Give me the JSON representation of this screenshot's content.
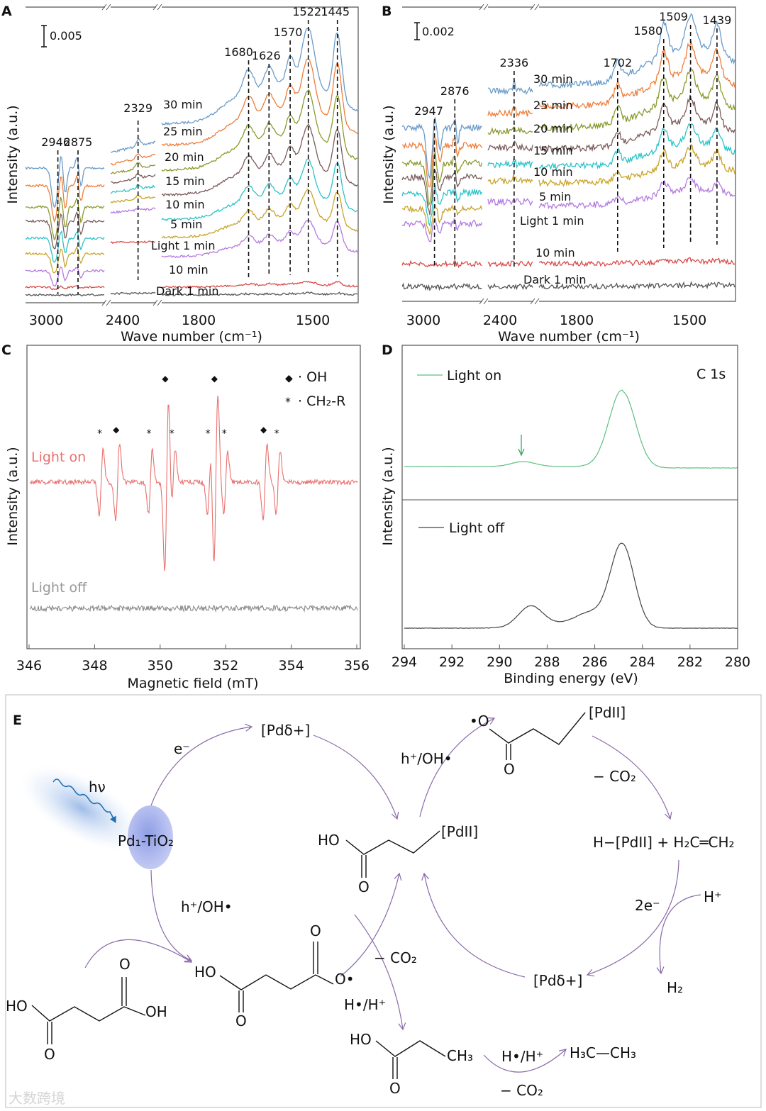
{
  "panels": {
    "A": "A",
    "B": "B",
    "C": "C",
    "D": "D",
    "E": "E"
  },
  "chart_data": [
    {
      "panel": "A",
      "type": "line",
      "xlabel": "Wave number (cm⁻¹)",
      "ylabel": "Intensity (a.u.)",
      "scale_bar": "0.005",
      "x_ticks": [
        "3000",
        "2400",
        "1800",
        "1500"
      ],
      "x_reversed": true,
      "axis_breaks": true,
      "peak_labels": [
        "2946",
        "2875",
        "2329",
        "1680",
        "1626",
        "1570",
        "1522",
        "1445"
      ],
      "peaks": [
        2946,
        2875,
        2329,
        1680,
        1626,
        1570,
        1522,
        1445
      ],
      "series": [
        {
          "name": "30 min",
          "color": "#6b9bc8",
          "rel_intensity": 1.0
        },
        {
          "name": "25 min",
          "color": "#ee7d3a",
          "rel_intensity": 0.9
        },
        {
          "name": "20 min",
          "color": "#8a9a2c",
          "rel_intensity": 0.82
        },
        {
          "name": "15 min",
          "color": "#7c5c5c",
          "rel_intensity": 0.72
        },
        {
          "name": "10 min",
          "color": "#2cc3c9",
          "rel_intensity": 0.62
        },
        {
          "name": "5 min",
          "color": "#c9a52a",
          "rel_intensity": 0.5
        },
        {
          "name": "Light 1 min",
          "color": "#b47be0",
          "rel_intensity": 0.38
        },
        {
          "name": "10 min",
          "color": "#d94a4a",
          "rel_intensity": 0.06
        },
        {
          "name": "Dark 1 min",
          "color": "#555555",
          "rel_intensity": 0.02
        }
      ]
    },
    {
      "panel": "B",
      "type": "line",
      "xlabel": "Wave number (cm⁻¹)",
      "ylabel": "Intensity (a.u.)",
      "scale_bar": "0.002",
      "x_ticks": [
        "3000",
        "2400",
        "1800",
        "1500"
      ],
      "x_reversed": true,
      "axis_breaks": true,
      "peak_labels": [
        "2947",
        "2876",
        "2336",
        "1702",
        "1580",
        "1509",
        "1439"
      ],
      "peaks": [
        2947,
        2876,
        2336,
        1702,
        1580,
        1509,
        1439
      ],
      "series": [
        {
          "name": "30 min",
          "color": "#6b9bc8",
          "rel_intensity": 1.0
        },
        {
          "name": "25 min",
          "color": "#ee7d3a",
          "rel_intensity": 0.9
        },
        {
          "name": "20 min",
          "color": "#8a9a2c",
          "rel_intensity": 0.82
        },
        {
          "name": "15 min",
          "color": "#7c5c5c",
          "rel_intensity": 0.72
        },
        {
          "name": "10 min",
          "color": "#2cc3c9",
          "rel_intensity": 0.62
        },
        {
          "name": "5 min",
          "color": "#c9a52a",
          "rel_intensity": 0.5
        },
        {
          "name": "Light 1 min",
          "color": "#b47be0",
          "rel_intensity": 0.38
        },
        {
          "name": "10 min",
          "color": "#d94a4a",
          "rel_intensity": 0.06
        },
        {
          "name": "Dark 1 min",
          "color": "#555555",
          "rel_intensity": 0.03
        }
      ]
    },
    {
      "panel": "C",
      "type": "line",
      "xlabel": "Magnetic field (mT)",
      "ylabel": "Intensity (a.u.)",
      "xlim": [
        346,
        356
      ],
      "x_ticks": [
        "346",
        "348",
        "350",
        "352",
        "354",
        "356"
      ],
      "legend": [
        {
          "symbol": "◆",
          "label": "· OH"
        },
        {
          "symbol": "*",
          "label": "· CH₂-R"
        }
      ],
      "legend_placement": "top-right",
      "series": [
        {
          "name": "Light on",
          "color": "#e8706e"
        },
        {
          "name": "Light off",
          "color": "#8c8c8c"
        }
      ],
      "oh_lines_mT": [
        348.7,
        350.2,
        351.7,
        353.2
      ],
      "ch2r_lines_mT": [
        348.2,
        349.7,
        350.4,
        351.5,
        352.0,
        353.6
      ]
    },
    {
      "panel": "D",
      "type": "line",
      "xlabel": "Binding energy (eV)",
      "ylabel": "Intensity (a.u.)",
      "xlim": [
        294,
        280
      ],
      "x_ticks": [
        "294",
        "292",
        "290",
        "288",
        "286",
        "284",
        "282",
        "280"
      ],
      "annotation": "C 1s",
      "series": [
        {
          "name": "Light on",
          "color": "#5fbf84",
          "peaks_eV": [
            284.8,
            289.0
          ]
        },
        {
          "name": "Light off",
          "color": "#444444",
          "peaks_eV": [
            284.8,
            286.3,
            288.7
          ]
        }
      ]
    }
  ],
  "scheme": {
    "hv": "hν",
    "catalyst": "Pd₁-TiO₂",
    "e_minus": "e⁻",
    "pd_delta_top": "[Pdδ+]",
    "pd_delta_bottom": "[Pdδ+]",
    "center_ho": "HO",
    "center_o": "O",
    "center_pd": "[PdII]",
    "h_oh_top": "h⁺/OH•",
    "top_o_radical": "•O",
    "top_o": "O",
    "top_pd": "[PdII]",
    "minus_co2_top": "− CO₂",
    "hydride_ethylene": "H−[PdII] + H₂C═CH₂",
    "two_e": "2e⁻",
    "h_plus": "H⁺",
    "h2": "H₂",
    "h_oh_left": "h⁺/OH•",
    "succ_ho": "HO",
    "succ_oh": "OH",
    "succ_o1": "O",
    "succ_o2": "O",
    "rad_ho": "HO",
    "rad_o_dot": "O•",
    "rad_o1": "O",
    "rad_o2": "O",
    "minus_co2_mid": "− CO₂",
    "h_dot_h_plus_1": "H•/H⁺",
    "prop_ho": "HO",
    "prop_ch3": "CH₃",
    "prop_o": "O",
    "h_dot_h_plus_2": "H•/H⁺",
    "minus_co2_bottom": "− CO₂",
    "ethane": "H₃C—CH₃",
    "watermark": "大数跨境"
  }
}
